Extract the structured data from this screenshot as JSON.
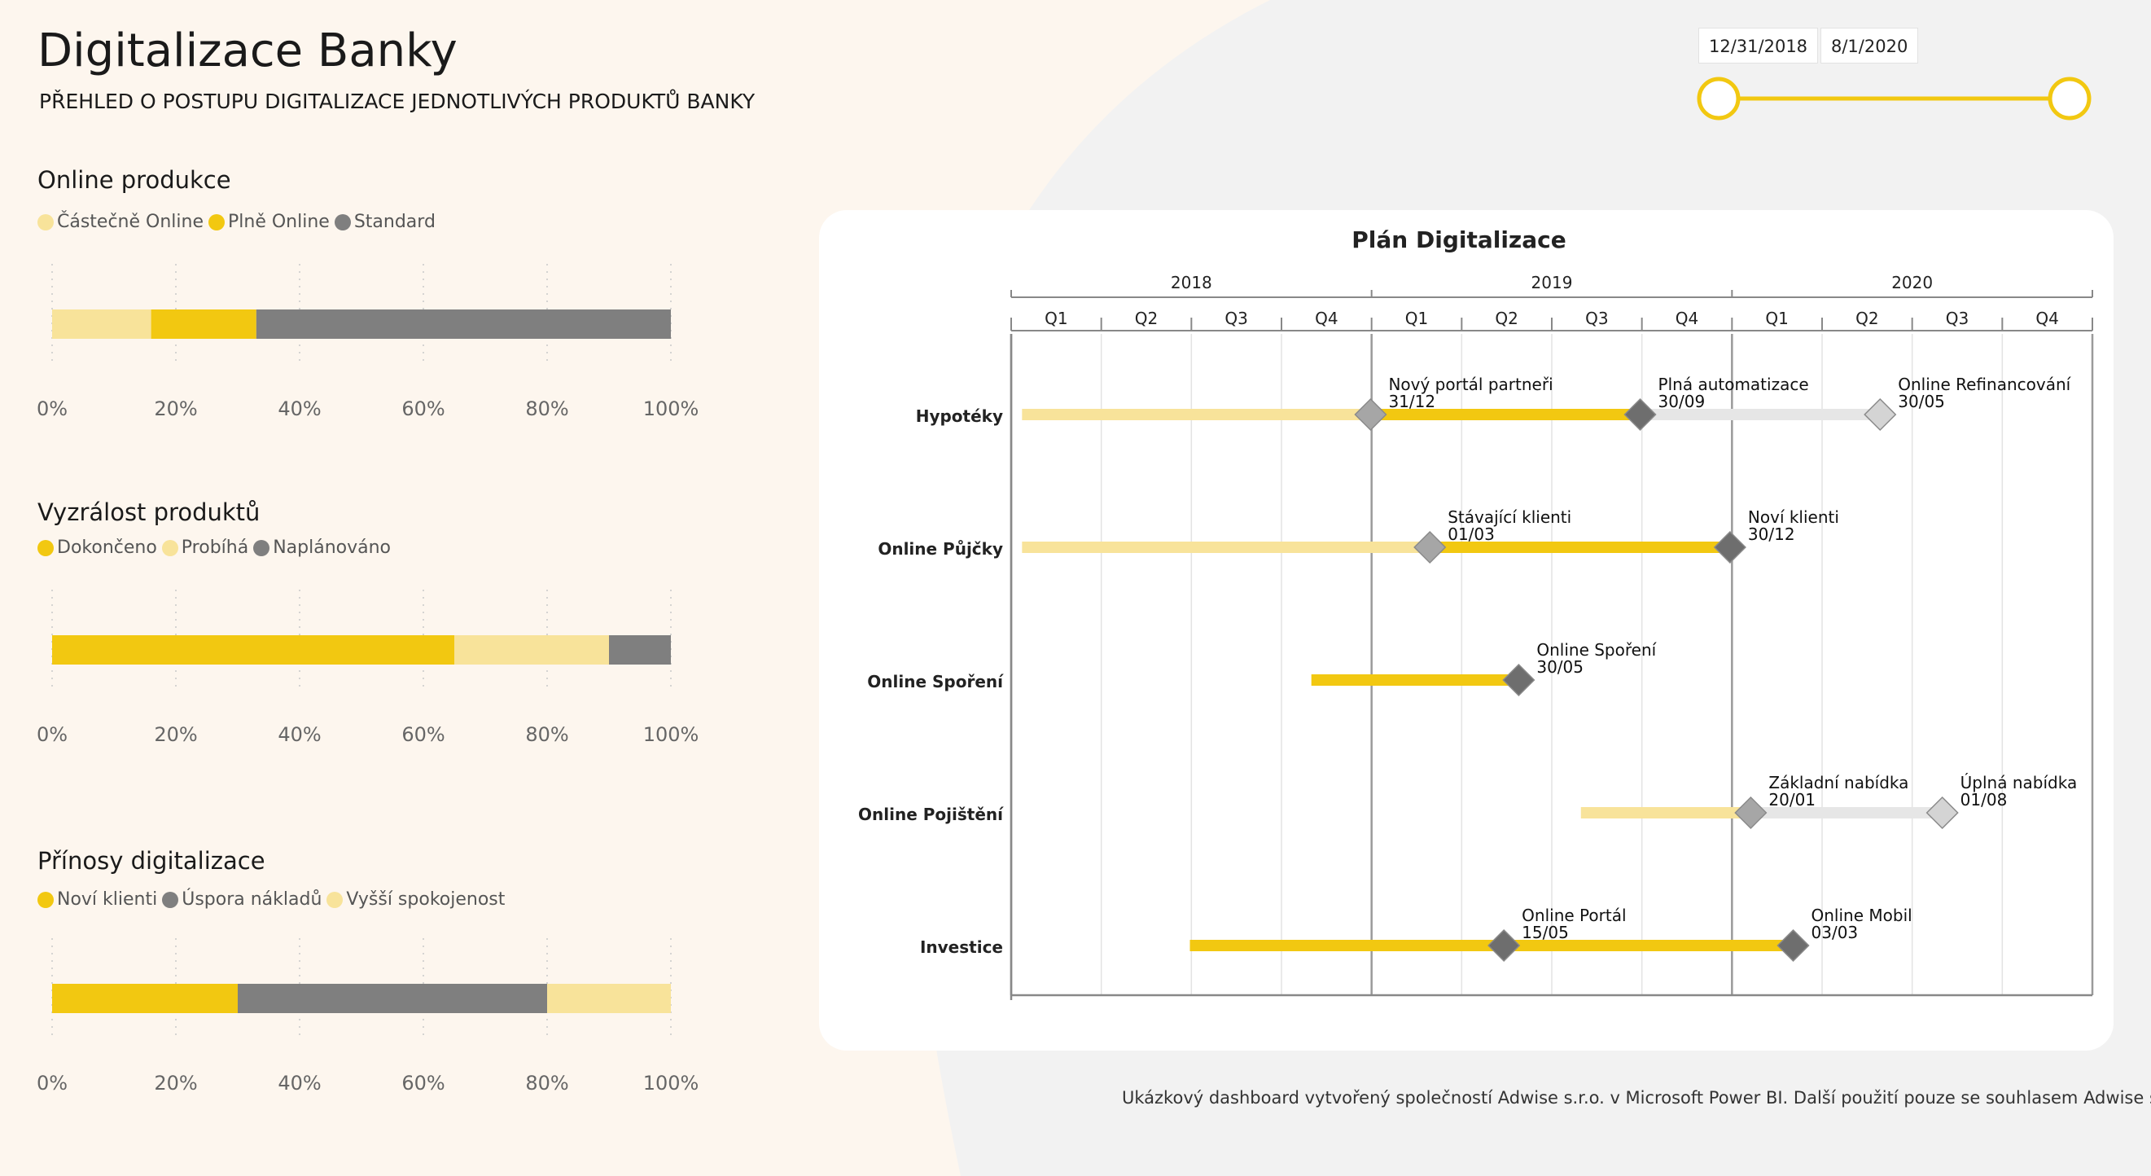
{
  "header": {
    "title": "Digitalizace Banky",
    "subtitle": "PŘEHLED O POSTUPU DIGITALIZACE JEDNOTLIVÝCH PRODUKTŮ BANKY"
  },
  "date_slicer": {
    "start": "12/31/2018",
    "end": "8/1/2020",
    "range_fraction": [
      0,
      1
    ]
  },
  "colors": {
    "yellow": "#f2c811",
    "light_yellow": "#f8e39a",
    "gray": "#7f7f7f",
    "light_gray": "#e6e6e6",
    "cream_bg": "#fdf6ee",
    "page_bg": "#f2f2f2"
  },
  "panels": [
    {
      "title": "Online produkce",
      "legend": [
        {
          "label": "Částečně Online",
          "color": "#f8e39a"
        },
        {
          "label": "Plně Online",
          "color": "#f2c811"
        },
        {
          "label": "Standard",
          "color": "#7f7f7f"
        }
      ],
      "chart_data": {
        "type": "bar",
        "orientation": "horizontal-100%-stacked",
        "segments": [
          {
            "name": "Částečně Online",
            "value": 16,
            "color": "#f8e39a"
          },
          {
            "name": "Plně Online",
            "value": 17,
            "color": "#f2c811"
          },
          {
            "name": "Standard",
            "value": 67,
            "color": "#7f7f7f"
          }
        ],
        "ticks": [
          "0%",
          "20%",
          "40%",
          "60%",
          "80%",
          "100%"
        ],
        "xlim": [
          0,
          100
        ]
      }
    },
    {
      "title": "Vyzrálost produktů",
      "legend": [
        {
          "label": "Dokončeno",
          "color": "#f2c811"
        },
        {
          "label": "Probíhá",
          "color": "#f8e39a"
        },
        {
          "label": "Naplánováno",
          "color": "#7f7f7f"
        }
      ],
      "chart_data": {
        "type": "bar",
        "orientation": "horizontal-100%-stacked",
        "segments": [
          {
            "name": "Dokončeno",
            "value": 65,
            "color": "#f2c811"
          },
          {
            "name": "Probíhá",
            "value": 25,
            "color": "#f8e39a"
          },
          {
            "name": "Naplánováno",
            "value": 10,
            "color": "#7f7f7f"
          }
        ],
        "ticks": [
          "0%",
          "20%",
          "40%",
          "60%",
          "80%",
          "100%"
        ],
        "xlim": [
          0,
          100
        ]
      }
    },
    {
      "title": "Přínosy digitalizace",
      "legend": [
        {
          "label": "Noví klienti",
          "color": "#f2c811"
        },
        {
          "label": "Úspora nákladů",
          "color": "#7f7f7f"
        },
        {
          "label": "Vyšší spokojenost",
          "color": "#f8e39a"
        }
      ],
      "chart_data": {
        "type": "bar",
        "orientation": "horizontal-100%-stacked",
        "segments": [
          {
            "name": "Noví klienti",
            "value": 30,
            "color": "#f2c811"
          },
          {
            "name": "Úspora nákladů",
            "value": 50,
            "color": "#7f7f7f"
          },
          {
            "name": "Vyšší spokojenost",
            "value": 20,
            "color": "#f8e39a"
          }
        ],
        "ticks": [
          "0%",
          "20%",
          "40%",
          "60%",
          "80%",
          "100%"
        ],
        "xlim": [
          0,
          100
        ]
      }
    }
  ],
  "gantt": {
    "title": "Plán Digitalizace",
    "years": [
      "2018",
      "2019",
      "2020"
    ],
    "quarters": [
      "Q1",
      "Q2",
      "Q3",
      "Q4"
    ],
    "axis_start": "2018-01-01",
    "axis_end": "2020-12-31",
    "rows": [
      {
        "label": "Hypotéky",
        "segments": [
          {
            "from": "2018-01-12",
            "to": "2018-12-31",
            "color": "#f8e39a"
          },
          {
            "from": "2018-12-31",
            "to": "2019-09-30",
            "color": "#f2c811"
          },
          {
            "from": "2019-09-30",
            "to": "2020-05-30",
            "color": "#e6e6e6"
          }
        ],
        "milestones": [
          {
            "date": "2018-12-31",
            "title": "Nový portál partneři",
            "date_label": "31/12",
            "color": "#a6a6a6"
          },
          {
            "date": "2019-09-30",
            "title": "Plná automatizace",
            "date_label": "30/09",
            "color": "#6e6e6e"
          },
          {
            "date": "2020-05-30",
            "title": "Online Refinancování",
            "date_label": "30/05",
            "color": "#d4d4d4"
          }
        ]
      },
      {
        "label": "Online Půjčky",
        "segments": [
          {
            "from": "2018-01-12",
            "to": "2019-03-01",
            "color": "#f8e39a"
          },
          {
            "from": "2019-03-01",
            "to": "2019-12-30",
            "color": "#f2c811"
          }
        ],
        "milestones": [
          {
            "date": "2019-03-01",
            "title": "Stávající klienti",
            "date_label": "01/03",
            "color": "#a6a6a6"
          },
          {
            "date": "2019-12-30",
            "title": "Noví klienti",
            "date_label": "30/12",
            "color": "#6e6e6e"
          }
        ]
      },
      {
        "label": "Online Spoření",
        "segments": [
          {
            "from": "2018-11-01",
            "to": "2019-05-30",
            "color": "#f2c811"
          }
        ],
        "milestones": [
          {
            "date": "2019-05-30",
            "title": "Online Spoření",
            "date_label": "30/05",
            "color": "#6e6e6e"
          }
        ]
      },
      {
        "label": "Online Pojištění",
        "segments": [
          {
            "from": "2019-08-01",
            "to": "2020-01-20",
            "color": "#f8e39a"
          },
          {
            "from": "2020-01-20",
            "to": "2020-08-01",
            "color": "#e6e6e6"
          }
        ],
        "milestones": [
          {
            "date": "2020-01-20",
            "title": "Základní nabídka",
            "date_label": "20/01",
            "color": "#a6a6a6"
          },
          {
            "date": "2020-08-01",
            "title": "Úplná nabídka",
            "date_label": "01/08",
            "color": "#d4d4d4"
          }
        ]
      },
      {
        "label": "Investice",
        "segments": [
          {
            "from": "2018-07-01",
            "to": "2020-03-03",
            "color": "#f2c811"
          }
        ],
        "milestones": [
          {
            "date": "2019-05-15",
            "title": "Online Portál",
            "date_label": "15/05",
            "color": "#6e6e6e"
          },
          {
            "date": "2020-03-03",
            "title": "Online Mobil",
            "date_label": "03/03",
            "color": "#6e6e6e"
          }
        ]
      }
    ]
  },
  "footer": {
    "text": "Ukázkový dashboard vytvořený společností Adwise s.r.o. v Microsoft Power BI. Další použití pouze se souhlasem Adwise s.r.o."
  }
}
